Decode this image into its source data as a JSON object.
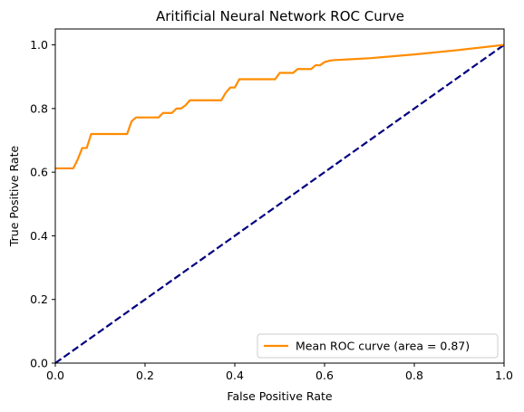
{
  "chart_data": {
    "type": "line",
    "title": "Aritificial Neural Network ROC Curve",
    "xlabel": "False Positive Rate",
    "ylabel": "True Positive Rate",
    "xlim": [
      0.0,
      1.0
    ],
    "ylim": [
      0.0,
      1.05
    ],
    "xticks": [
      "0.0",
      "0.2",
      "0.4",
      "0.6",
      "0.8",
      "1.0"
    ],
    "yticks": [
      "0.0",
      "0.2",
      "0.4",
      "0.6",
      "0.8",
      "1.0"
    ],
    "grid": false,
    "legend_position": "lower-right",
    "series": [
      {
        "name": "Mean ROC curve (area = 0.87)",
        "color": "#ff8c00",
        "style": "solid",
        "x": [
          0.0,
          0.04,
          0.05,
          0.06,
          0.07,
          0.08,
          0.09,
          0.13,
          0.16,
          0.17,
          0.18,
          0.19,
          0.23,
          0.24,
          0.26,
          0.27,
          0.28,
          0.29,
          0.3,
          0.31,
          0.37,
          0.38,
          0.39,
          0.4,
          0.41,
          0.49,
          0.5,
          0.53,
          0.54,
          0.57,
          0.58,
          0.59,
          0.6,
          0.61,
          0.62,
          0.7,
          0.8,
          0.9,
          1.0
        ],
        "y": [
          0.612,
          0.612,
          0.64,
          0.676,
          0.676,
          0.72,
          0.72,
          0.72,
          0.72,
          0.76,
          0.772,
          0.772,
          0.772,
          0.786,
          0.786,
          0.8,
          0.8,
          0.81,
          0.826,
          0.826,
          0.826,
          0.85,
          0.866,
          0.866,
          0.892,
          0.892,
          0.912,
          0.912,
          0.924,
          0.924,
          0.936,
          0.936,
          0.946,
          0.95,
          0.952,
          0.958,
          0.97,
          0.984,
          1.0
        ]
      },
      {
        "name": "",
        "color": "#000080",
        "style": "dashed",
        "x": [
          0.0,
          1.0
        ],
        "y": [
          0.0,
          1.0
        ]
      }
    ]
  }
}
